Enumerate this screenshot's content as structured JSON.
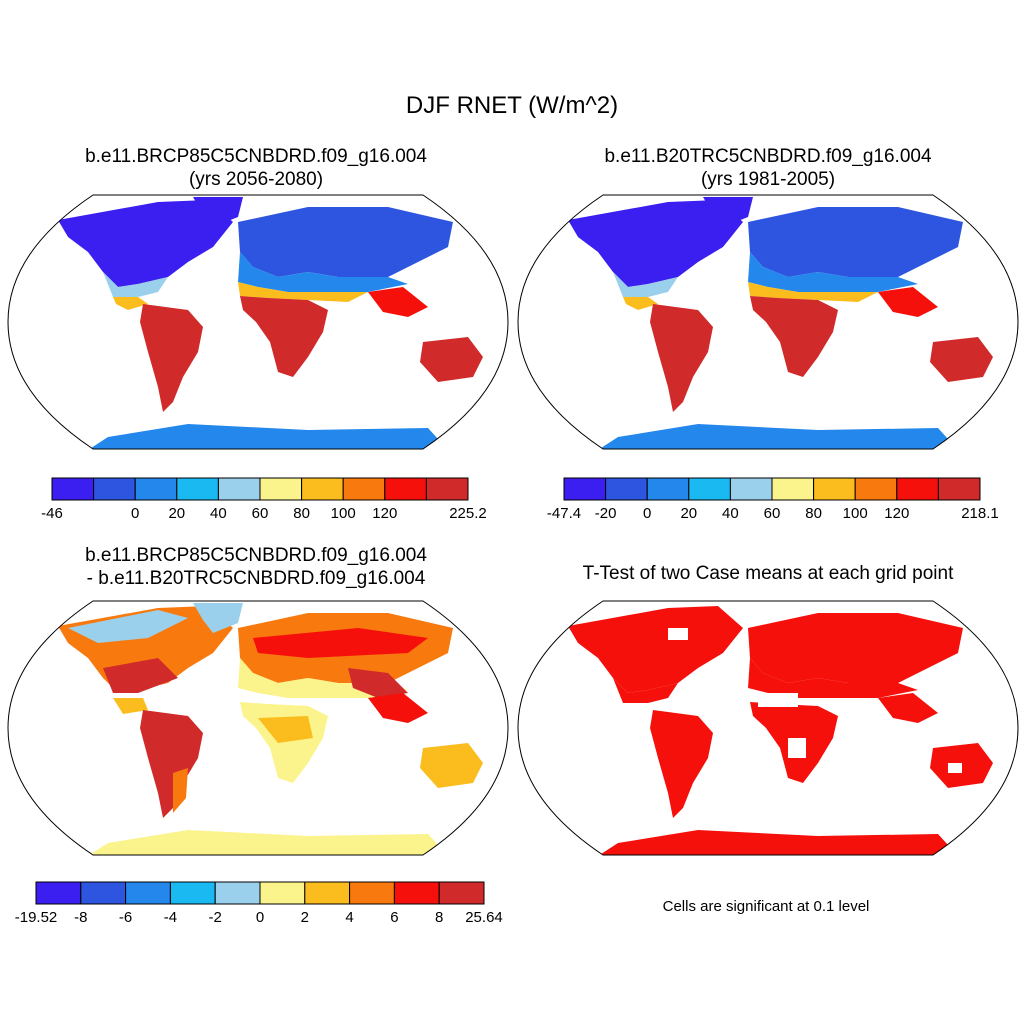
{
  "main_title": "DJF RNET (W/m^2)",
  "panels": [
    {
      "title_line1": "b.e11.BRCP85C5CNBDRD.f09_g16.004",
      "title_line2": "(yrs 2056-2080)",
      "colorbar": {
        "colors": [
          "#3b1ef0",
          "#2d55e0",
          "#2487ec",
          "#1ab9f2",
          "#9ad0ec",
          "#fbf38b",
          "#fbbd1d",
          "#f87a0e",
          "#f5100c",
          "#d02a2a"
        ],
        "labels": [
          "-46",
          "0",
          "20",
          "40",
          "60",
          "80",
          "100",
          "120",
          "225.2"
        ],
        "label_edges": [
          0,
          2,
          3,
          4,
          5,
          6,
          7,
          8,
          10
        ]
      }
    },
    {
      "title_line1": "b.e11.B20TRC5CNBDRD.f09_g16.004",
      "title_line2": "(yrs 1981-2005)",
      "colorbar": {
        "colors": [
          "#3b1ef0",
          "#2d55e0",
          "#2487ec",
          "#1ab9f2",
          "#9ad0ec",
          "#fbf38b",
          "#fbbd1d",
          "#f87a0e",
          "#f5100c",
          "#d02a2a"
        ],
        "labels": [
          "-47.4",
          "-20",
          "0",
          "20",
          "40",
          "60",
          "80",
          "100",
          "120",
          "218.1"
        ],
        "label_edges": [
          0,
          1,
          2,
          3,
          4,
          5,
          6,
          7,
          8,
          10
        ]
      }
    },
    {
      "title_line1": "b.e11.BRCP85C5CNBDRD.f09_g16.004",
      "title_line2": "- b.e11.B20TRC5CNBDRD.f09_g16.004",
      "colorbar": {
        "colors": [
          "#3b1ef0",
          "#2d55e0",
          "#2487ec",
          "#1ab9f2",
          "#9ad0ec",
          "#fbf38b",
          "#fbbd1d",
          "#f87a0e",
          "#f5100c",
          "#d02a2a"
        ],
        "labels": [
          "-19.52",
          "-8",
          "-6",
          "-4",
          "-2",
          "0",
          "2",
          "4",
          "6",
          "8",
          "25.64"
        ],
        "label_edges": [
          0,
          1,
          2,
          3,
          4,
          5,
          6,
          7,
          8,
          9,
          10
        ]
      }
    },
    {
      "title_line1": "T-Test of two Case means at each grid point",
      "title_line2": "",
      "note": "Cells are significant at 0.1 level",
      "significant_color": "#f5100c"
    }
  ]
}
